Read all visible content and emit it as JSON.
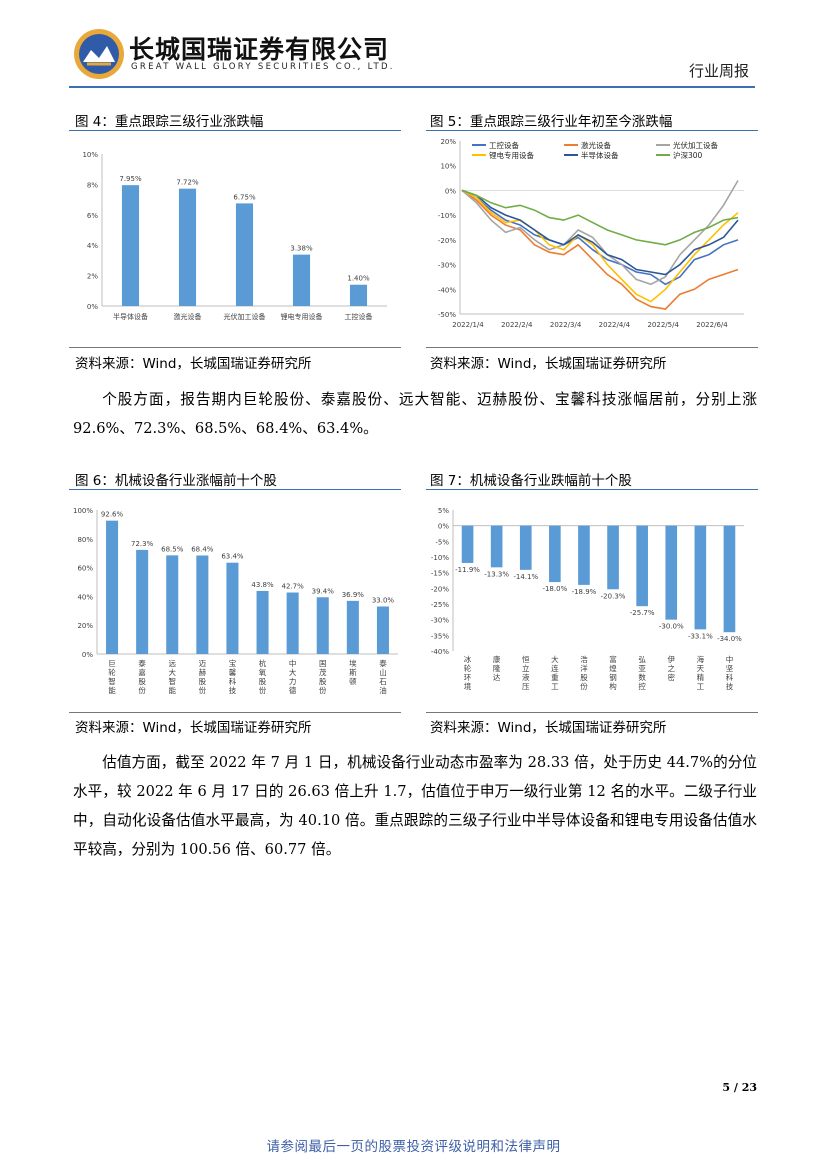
{
  "header": {
    "company_cn": "长城国瑞证券有限公司",
    "company_en": "GREAT WALL GLORY SECURITIES CO., LTD.",
    "report_type": "行业周报"
  },
  "fig4": {
    "title": "图 4：重点跟踪三级行业涨跌幅",
    "source": "资料来源：Wind，长城国瑞证券研究所",
    "chart_data": {
      "type": "bar",
      "categories": [
        "半导体设备",
        "激光设备",
        "光伏加工设备",
        "锂电专用设备",
        "工控设备"
      ],
      "values": [
        7.95,
        7.72,
        6.75,
        3.38,
        1.4
      ],
      "data_labels": [
        "7.95%",
        "7.72%",
        "6.75%",
        "3.38%",
        "1.40%"
      ],
      "ylim": [
        0,
        10
      ],
      "yticks": [
        "0%",
        "2%",
        "4%",
        "6%",
        "8%",
        "10%"
      ],
      "bar_color": "#5b9bd5",
      "grid": false
    }
  },
  "fig5": {
    "title": "图 5：重点跟踪三级行业年初至今涨跌幅",
    "source": "资料来源：Wind，长城国瑞证券研究所",
    "chart_data": {
      "type": "line",
      "x_ticks": [
        "2022/1/4",
        "2022/2/4",
        "2022/3/4",
        "2022/4/4",
        "2022/5/4",
        "2022/6/4"
      ],
      "yticks": [
        "-50%",
        "-40%",
        "-30%",
        "-20%",
        "-10%",
        "0%",
        "10%",
        "20%"
      ],
      "ylim": [
        -50,
        20
      ],
      "legend_position": "top",
      "series": [
        {
          "name": "工控设备",
          "color": "#4472c4",
          "values": [
            0,
            -3,
            -8,
            -12,
            -14,
            -18,
            -20,
            -22,
            -19,
            -24,
            -28,
            -30,
            -33,
            -34,
            -38,
            -35,
            -28,
            -26,
            -22,
            -20
          ]
        },
        {
          "name": "激光设备",
          "color": "#ed7d31",
          "values": [
            0,
            -4,
            -10,
            -14,
            -16,
            -22,
            -25,
            -26,
            -22,
            -28,
            -34,
            -38,
            -44,
            -47,
            -48,
            -42,
            -40,
            -36,
            -34,
            -32
          ]
        },
        {
          "name": "光伏加工设备",
          "color": "#a5a5a5",
          "values": [
            0,
            -5,
            -12,
            -17,
            -15,
            -20,
            -24,
            -22,
            -16,
            -19,
            -26,
            -30,
            -36,
            -38,
            -35,
            -26,
            -20,
            -14,
            -6,
            4
          ]
        },
        {
          "name": "锂电专用设备",
          "color": "#ffc000",
          "values": [
            0,
            -3,
            -9,
            -13,
            -12,
            -16,
            -22,
            -24,
            -18,
            -22,
            -30,
            -36,
            -42,
            -45,
            -40,
            -33,
            -26,
            -20,
            -14,
            -9
          ]
        },
        {
          "name": "半导体设备",
          "color": "#2e5597",
          "values": [
            0,
            -2,
            -7,
            -10,
            -12,
            -16,
            -20,
            -22,
            -18,
            -21,
            -26,
            -28,
            -32,
            -33,
            -34,
            -30,
            -24,
            -22,
            -19,
            -12
          ]
        },
        {
          "name": "沪深300",
          "color": "#70ad47",
          "values": [
            0,
            -2,
            -5,
            -7,
            -6,
            -8,
            -11,
            -12,
            -10,
            -13,
            -16,
            -18,
            -20,
            -21,
            -22,
            -20,
            -17,
            -15,
            -12,
            -11
          ]
        }
      ]
    }
  },
  "paragraph1": "个股方面，报告期内巨轮股份、泰嘉股份、远大智能、迈赫股份、宝馨科技涨幅居前，分别上涨 92.6%、72.3%、68.5%、68.4%、63.4%。",
  "fig6": {
    "title": "图 6：机械设备行业涨幅前十个股",
    "source": "资料来源：Wind，长城国瑞证券研究所",
    "chart_data": {
      "type": "bar",
      "categories": [
        "巨轮智能",
        "泰嘉股份",
        "远大智能",
        "迈赫股份",
        "宝馨科技",
        "杭氧股份",
        "中大力德",
        "国茂股份",
        "埃斯顿",
        "泰山石油"
      ],
      "values": [
        92.6,
        72.3,
        68.5,
        68.4,
        63.4,
        43.8,
        42.7,
        39.4,
        36.9,
        33.0
      ],
      "data_labels": [
        "92.6%",
        "72.3%",
        "68.5%",
        "68.4%",
        "63.4%",
        "43.8%",
        "42.7%",
        "39.4%",
        "36.9%",
        "33.0%"
      ],
      "ylim": [
        0,
        100
      ],
      "yticks": [
        "0%",
        "20%",
        "40%",
        "60%",
        "80%",
        "100%"
      ],
      "bar_color": "#5b9bd5"
    }
  },
  "fig7": {
    "title": "图 7：机械设备行业跌幅前十个股",
    "source": "资料来源：Wind，长城国瑞证券研究所",
    "chart_data": {
      "type": "bar",
      "categories": [
        "冰轮环境",
        "康隆达",
        "恒立液压",
        "大连重工",
        "浩洋股份",
        "富煌钢构",
        "弘亚数控",
        "伊之密",
        "海天精工",
        "中坚科技"
      ],
      "values": [
        -11.9,
        -13.3,
        -14.1,
        -18.0,
        -18.9,
        -20.3,
        -25.7,
        -30.0,
        -33.1,
        -34.0
      ],
      "data_labels": [
        "-11.9%",
        "-13.3%",
        "-14.1%",
        "-18.0%",
        "-18.9%",
        "-20.3%",
        "-25.7%",
        "-30.0%",
        "-33.1%",
        "-34.0%"
      ],
      "ylim": [
        -40,
        5
      ],
      "yticks": [
        "5%",
        "0%",
        "-5%",
        "-10%",
        "-15%",
        "-20%",
        "-25%",
        "-30%",
        "-35%",
        "-40%"
      ],
      "bar_color": "#5b9bd5"
    }
  },
  "paragraph2": "估值方面，截至 2022 年 7 月 1 日，机械设备行业动态市盈率为 28.33 倍，处于历史 44.7%的分位水平，较 2022 年 6 月 17 日的 26.63 倍上升 1.7，估值位于申万一级行业第 12 名的水平。二级子行业中，自动化设备估值水平最高，为 40.10 倍。重点跟踪的三级子行业中半导体设备和锂电专用设备估值水平较高，分别为 100.56 倍、60.77 倍。",
  "footer": {
    "page": "5 / 23",
    "disclaimer": "请参阅最后一页的股票投资评级说明和法律声明"
  }
}
